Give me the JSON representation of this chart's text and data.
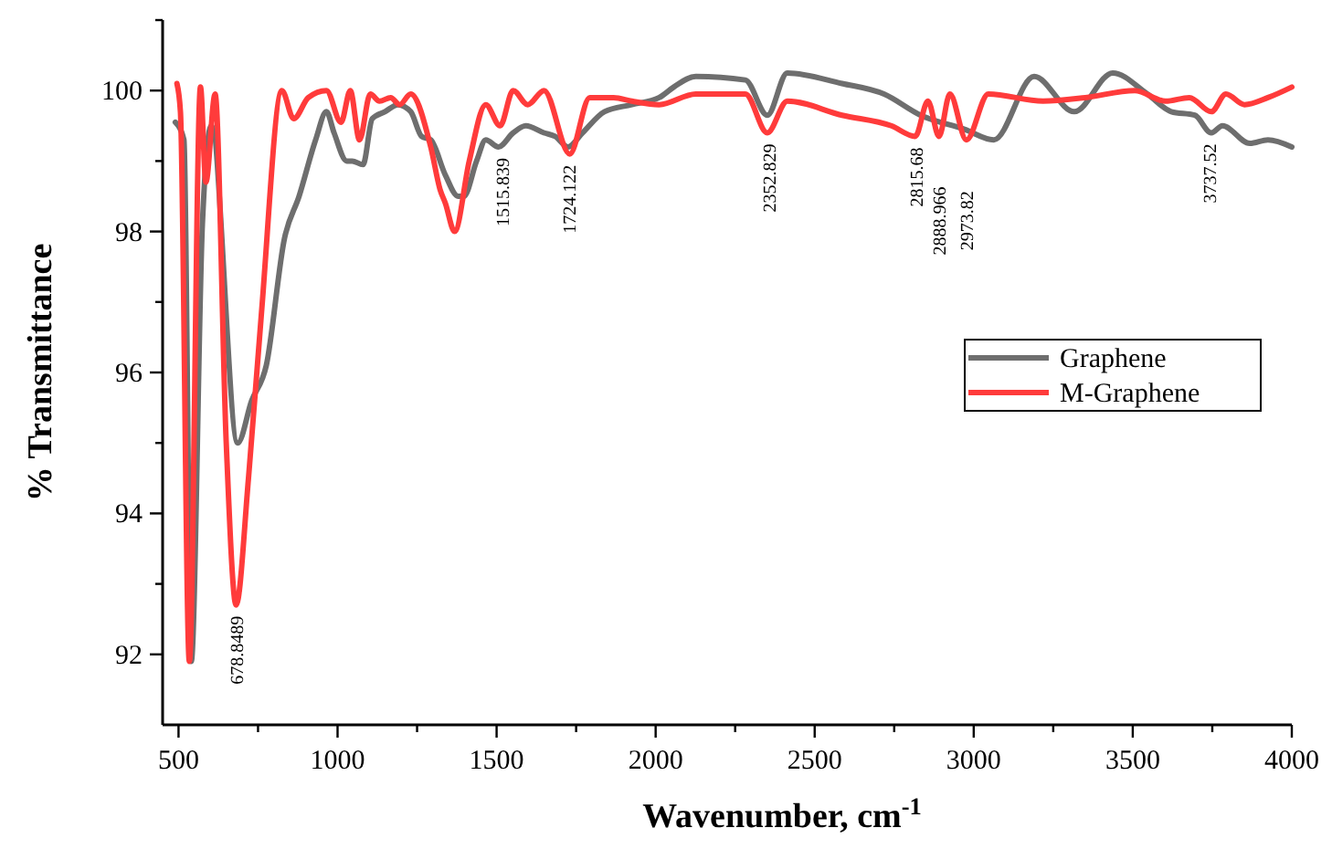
{
  "chart_data": {
    "type": "line",
    "xlabel": "Wavenumber, cm$^{-1}$",
    "ylabel": "% Transmittance",
    "xlim": [
      450,
      4000
    ],
    "ylim": [
      91,
      101
    ],
    "xticks": [
      500,
      {
        "value": 750,
        "label": null
      },
      1000,
      {
        "value": 1250,
        "label": null
      },
      1500,
      {
        "value": 1750,
        "label": null
      },
      2000,
      {
        "value": 2250,
        "label": null
      },
      2500,
      {
        "value": 2750,
        "label": null
      },
      3000,
      {
        "value": 3250,
        "label": null
      },
      3500,
      {
        "value": 3750,
        "label": null
      },
      4000
    ],
    "yticks": [
      92,
      {
        "value": 93,
        "label": null
      },
      94,
      {
        "value": 95,
        "label": null
      },
      96,
      {
        "value": 97,
        "label": null
      },
      98,
      {
        "value": 99,
        "label": null
      },
      100,
      {
        "value": 101,
        "label": null
      }
    ],
    "grid": false,
    "legend": "right",
    "line_style": "solid",
    "marker": "none",
    "series": [
      {
        "name": "Graphene",
        "color": "#6e6e6e",
        "x": [
          490,
          517,
          540,
          575,
          603,
          686,
          730,
          776,
          833,
          879,
          931,
          965,
          989,
          1029,
          1046,
          1080,
          1109,
          1149,
          1190,
          1230,
          1264,
          1293,
          1339,
          1379,
          1397,
          1437,
          1466,
          1506,
          1552,
          1592,
          1649,
          1684,
          1724,
          1770,
          1839,
          1925,
          2011,
          2057,
          2126,
          2282,
          2351,
          2414,
          2586,
          2718,
          2833,
          2971,
          3063,
          3190,
          3316,
          3437,
          3546,
          3621,
          3695,
          3747,
          3782,
          3868,
          3925,
          4000
        ],
        "values": [
          99.55,
          99.3,
          91.9,
          98.1,
          99.5,
          95.0,
          95.6,
          96.1,
          97.9,
          98.5,
          99.3,
          99.7,
          99.4,
          99.0,
          99.0,
          98.95,
          99.6,
          99.7,
          99.8,
          99.7,
          99.35,
          99.3,
          98.8,
          98.5,
          98.5,
          99.0,
          99.3,
          99.2,
          99.4,
          99.5,
          99.4,
          99.35,
          99.2,
          99.4,
          99.7,
          99.8,
          99.9,
          100.05,
          100.2,
          100.15,
          99.65,
          100.25,
          100.1,
          99.95,
          99.65,
          99.45,
          99.3,
          100.2,
          99.7,
          100.25,
          99.95,
          99.7,
          99.65,
          99.4,
          99.5,
          99.25,
          99.3,
          99.2
        ]
      },
      {
        "name": "M-Graphene",
        "color": "#ff3b3b",
        "x": [
          495,
          506,
          534,
          569,
          586,
          615,
          650,
          681,
          720,
          760,
          825,
          862,
          908,
          965,
          1011,
          1040,
          1069,
          1103,
          1132,
          1167,
          1195,
          1230,
          1293,
          1322,
          1339,
          1368,
          1414,
          1466,
          1511,
          1552,
          1598,
          1649,
          1730,
          1793,
          1868,
          1925,
          2011,
          2126,
          2282,
          2351,
          2414,
          2586,
          2741,
          2816,
          2856,
          2891,
          2925,
          2977,
          3046,
          3218,
          3351,
          3506,
          3603,
          3678,
          3747,
          3793,
          3851,
          3925,
          4000
        ],
        "values": [
          100.1,
          99.7,
          91.9,
          100.05,
          98.7,
          99.95,
          95.0,
          92.7,
          94.5,
          96.8,
          100.0,
          99.6,
          99.9,
          100.0,
          99.55,
          100.0,
          99.3,
          99.95,
          99.85,
          99.9,
          99.8,
          99.95,
          99.2,
          98.6,
          98.4,
          98.0,
          99.0,
          99.8,
          99.5,
          100.0,
          99.8,
          100.0,
          99.1,
          99.9,
          99.9,
          99.85,
          99.8,
          99.95,
          99.95,
          99.4,
          99.85,
          99.65,
          99.5,
          99.35,
          99.85,
          99.35,
          99.95,
          99.3,
          99.95,
          99.85,
          99.9,
          100.0,
          99.85,
          99.9,
          99.7,
          99.95,
          99.8,
          99.9,
          100.05
        ]
      }
    ],
    "annotations": [
      {
        "text": "678.8489",
        "x": 678.8489,
        "y": 92.7
      },
      {
        "text": "1515.839",
        "x": 1515.839,
        "y": 99.2
      },
      {
        "text": "1724.122",
        "x": 1724.122,
        "y": 99.1
      },
      {
        "text": "2352.829",
        "x": 2352.829,
        "y": 99.4
      },
      {
        "text": "2815.68",
        "x": 2815.68,
        "y": 99.35
      },
      {
        "text": "2888.966",
        "x": 2888.966,
        "y": 99.36
      },
      {
        "text": "2973.82",
        "x": 2973.82,
        "y": 99.3
      },
      {
        "text": "3737.52",
        "x": 3737.52,
        "y": 99.4
      }
    ]
  }
}
